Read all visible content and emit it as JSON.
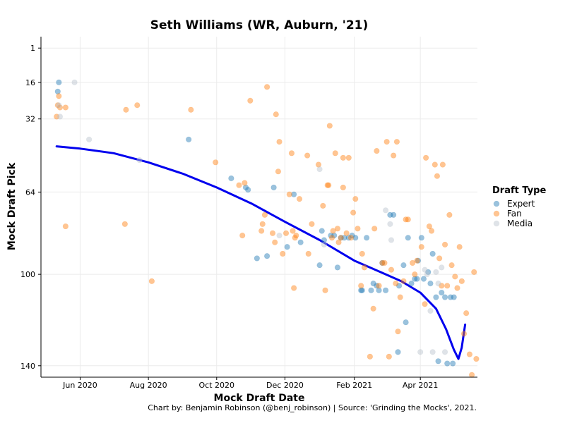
{
  "chart_data": {
    "type": "scatter",
    "title": "Seth Williams (WR, Auburn, '21)",
    "xlabel": "Mock Draft Date",
    "ylabel": "Mock Draft Pick",
    "caption": "Chart by: Benjamin Robinson (@benj_robinson) | Source: 'Grinding the Mocks', 2021.",
    "legend_title": "Draft Type",
    "legend_position": "right",
    "grid": true,
    "x_range": [
      "2020-04-27",
      "2021-05-22"
    ],
    "y_range": [
      145,
      -4
    ],
    "y_scale": "reversed",
    "x_ticks": [
      {
        "date": "2020-06-01",
        "label": "Jun 2020"
      },
      {
        "date": "2020-08-01",
        "label": "Aug 2020"
      },
      {
        "date": "2020-10-01",
        "label": "Oct 2020"
      },
      {
        "date": "2020-12-01",
        "label": "Dec 2020"
      },
      {
        "date": "2021-02-01",
        "label": "Feb 2021"
      },
      {
        "date": "2021-04-01",
        "label": "Apr 2021"
      }
    ],
    "y_ticks": [
      1,
      16,
      32,
      64,
      100,
      140
    ],
    "series": [
      {
        "name": "Expert",
        "color": "#1f77b4",
        "points": [
          [
            "2020-05-12",
            20
          ],
          [
            "2020-05-13",
            16
          ],
          [
            "2020-09-06",
            41
          ],
          [
            "2020-10-14",
            58
          ],
          [
            "2020-10-27",
            62
          ],
          [
            "2020-10-29",
            63
          ],
          [
            "2020-11-06",
            93
          ],
          [
            "2020-11-15",
            92
          ],
          [
            "2020-11-21",
            62
          ],
          [
            "2020-12-03",
            88
          ],
          [
            "2020-12-09",
            65
          ],
          [
            "2020-12-15",
            86
          ],
          [
            "2021-01-01",
            96
          ],
          [
            "2021-01-03",
            81
          ],
          [
            "2021-01-05",
            85
          ],
          [
            "2021-01-11",
            83
          ],
          [
            "2021-01-14",
            83
          ],
          [
            "2021-01-17",
            97
          ],
          [
            "2021-01-20",
            84
          ],
          [
            "2021-01-23",
            84
          ],
          [
            "2021-01-27",
            84
          ],
          [
            "2021-01-30",
            83
          ],
          [
            "2021-02-02",
            84
          ],
          [
            "2021-02-07",
            107
          ],
          [
            "2021-02-08",
            107
          ],
          [
            "2021-02-12",
            84
          ],
          [
            "2021-02-16",
            107
          ],
          [
            "2021-02-18",
            104
          ],
          [
            "2021-02-21",
            105
          ],
          [
            "2021-02-23",
            107
          ],
          [
            "2021-02-26",
            95
          ],
          [
            "2021-03-01",
            107
          ],
          [
            "2021-03-05",
            74
          ],
          [
            "2021-03-08",
            74
          ],
          [
            "2021-03-12",
            134
          ],
          [
            "2021-03-13",
            105
          ],
          [
            "2021-03-17",
            96
          ],
          [
            "2021-03-19",
            121
          ],
          [
            "2021-03-21",
            84
          ],
          [
            "2021-03-24",
            104
          ],
          [
            "2021-03-27",
            102
          ],
          [
            "2021-03-29",
            102
          ],
          [
            "2021-03-30",
            94
          ],
          [
            "2021-04-02",
            84
          ],
          [
            "2021-04-04",
            102
          ],
          [
            "2021-04-08",
            99
          ],
          [
            "2021-04-10",
            104
          ],
          [
            "2021-04-12",
            91
          ],
          [
            "2021-04-15",
            110
          ],
          [
            "2021-04-17",
            138
          ],
          [
            "2021-04-20",
            108
          ],
          [
            "2021-04-23",
            110
          ],
          [
            "2021-04-25",
            139
          ],
          [
            "2021-04-28",
            110
          ],
          [
            "2021-04-30",
            139
          ],
          [
            "2021-05-01",
            110
          ]
        ]
      },
      {
        "name": "Fan",
        "color": "#ff7f0e",
        "points": [
          [
            "2020-05-11",
            31
          ],
          [
            "2020-05-12",
            26
          ],
          [
            "2020-05-13",
            22
          ],
          [
            "2020-05-14",
            27
          ],
          [
            "2020-05-19",
            27
          ],
          [
            "2020-05-19",
            79
          ],
          [
            "2020-07-11",
            78
          ],
          [
            "2020-07-12",
            28
          ],
          [
            "2020-07-22",
            26
          ],
          [
            "2020-08-04",
            103
          ],
          [
            "2020-09-08",
            28
          ],
          [
            "2020-09-30",
            51
          ],
          [
            "2020-10-21",
            61
          ],
          [
            "2020-10-24",
            83
          ],
          [
            "2020-10-26",
            60
          ],
          [
            "2020-10-31",
            24
          ],
          [
            "2020-11-10",
            81
          ],
          [
            "2020-11-11",
            78
          ],
          [
            "2020-11-13",
            74
          ],
          [
            "2020-11-15",
            18
          ],
          [
            "2020-11-20",
            82
          ],
          [
            "2020-11-22",
            86
          ],
          [
            "2020-11-23",
            30
          ],
          [
            "2020-11-25",
            55
          ],
          [
            "2020-11-26",
            42
          ],
          [
            "2020-11-29",
            91
          ],
          [
            "2020-12-02",
            82
          ],
          [
            "2020-12-05",
            65
          ],
          [
            "2020-12-07",
            47
          ],
          [
            "2020-12-08",
            81
          ],
          [
            "2020-12-09",
            106
          ],
          [
            "2020-12-10",
            84
          ],
          [
            "2020-12-11",
            83
          ],
          [
            "2020-12-14",
            67
          ],
          [
            "2020-12-21",
            48
          ],
          [
            "2020-12-22",
            91
          ],
          [
            "2020-12-25",
            78
          ],
          [
            "2020-12-31",
            52
          ],
          [
            "2021-01-04",
            70
          ],
          [
            "2021-01-06",
            107
          ],
          [
            "2021-01-08",
            61
          ],
          [
            "2021-01-09",
            61
          ],
          [
            "2021-01-10",
            35
          ],
          [
            "2021-01-12",
            84
          ],
          [
            "2021-01-13",
            81
          ],
          [
            "2021-01-15",
            47
          ],
          [
            "2021-01-17",
            80
          ],
          [
            "2021-01-18",
            86
          ],
          [
            "2021-01-20",
            84
          ],
          [
            "2021-01-22",
            62
          ],
          [
            "2021-01-22",
            49
          ],
          [
            "2021-01-25",
            82
          ],
          [
            "2021-01-27",
            49
          ],
          [
            "2021-01-29",
            84
          ],
          [
            "2021-01-31",
            73
          ],
          [
            "2021-02-02",
            67
          ],
          [
            "2021-02-04",
            80
          ],
          [
            "2021-02-07",
            105
          ],
          [
            "2021-02-08",
            91
          ],
          [
            "2021-02-10",
            97
          ],
          [
            "2021-02-15",
            136
          ],
          [
            "2021-02-18",
            115
          ],
          [
            "2021-02-19",
            80
          ],
          [
            "2021-02-21",
            46
          ],
          [
            "2021-02-23",
            105
          ],
          [
            "2021-02-26",
            95
          ],
          [
            "2021-02-28",
            95
          ],
          [
            "2021-03-02",
            42
          ],
          [
            "2021-03-04",
            136
          ],
          [
            "2021-03-06",
            98
          ],
          [
            "2021-03-08",
            48
          ],
          [
            "2021-03-10",
            104
          ],
          [
            "2021-03-11",
            42
          ],
          [
            "2021-03-12",
            125
          ],
          [
            "2021-03-14",
            110
          ],
          [
            "2021-03-17",
            103
          ],
          [
            "2021-03-19",
            76
          ],
          [
            "2021-03-21",
            76
          ],
          [
            "2021-03-25",
            95
          ],
          [
            "2021-03-27",
            100
          ],
          [
            "2021-03-29",
            94
          ],
          [
            "2021-04-02",
            88
          ],
          [
            "2021-04-05",
            113
          ],
          [
            "2021-04-06",
            49
          ],
          [
            "2021-04-09",
            79
          ],
          [
            "2021-04-11",
            81
          ],
          [
            "2021-04-14",
            52
          ],
          [
            "2021-04-16",
            57
          ],
          [
            "2021-04-18",
            93
          ],
          [
            "2021-04-20",
            105
          ],
          [
            "2021-04-21",
            52
          ],
          [
            "2021-04-23",
            87
          ],
          [
            "2021-04-25",
            105
          ],
          [
            "2021-04-27",
            74
          ],
          [
            "2021-04-29",
            96
          ],
          [
            "2021-05-02",
            101
          ],
          [
            "2021-05-04",
            106
          ],
          [
            "2021-05-06",
            88
          ],
          [
            "2021-05-08",
            103
          ],
          [
            "2021-05-10",
            126
          ],
          [
            "2021-05-12",
            117
          ],
          [
            "2021-05-15",
            135
          ],
          [
            "2021-05-17",
            144
          ],
          [
            "2021-05-19",
            99
          ],
          [
            "2021-05-21",
            137
          ]
        ]
      },
      {
        "name": "Media",
        "color": "#b8c2cc",
        "points": [
          [
            "2020-05-13",
            26
          ],
          [
            "2020-05-14",
            31
          ],
          [
            "2020-05-27",
            16
          ],
          [
            "2020-06-09",
            41
          ],
          [
            "2020-07-24",
            50
          ],
          [
            "2020-11-26",
            83
          ],
          [
            "2021-01-01",
            54
          ],
          [
            "2021-01-05",
            87
          ],
          [
            "2021-03-01",
            72
          ],
          [
            "2021-03-05",
            78
          ],
          [
            "2021-03-06",
            85
          ],
          [
            "2021-04-01",
            134
          ],
          [
            "2021-04-05",
            98
          ],
          [
            "2021-04-07",
            100
          ],
          [
            "2021-04-10",
            116
          ],
          [
            "2021-04-12",
            134
          ],
          [
            "2021-04-15",
            99
          ],
          [
            "2021-04-17",
            104
          ],
          [
            "2021-04-20",
            97
          ],
          [
            "2021-04-23",
            134
          ]
        ]
      }
    ],
    "trend": {
      "name": "Trend",
      "color": "#0000ee",
      "points": [
        [
          "2020-05-11",
          44
        ],
        [
          "2020-06-01",
          45
        ],
        [
          "2020-07-01",
          47
        ],
        [
          "2020-08-01",
          51
        ],
        [
          "2020-09-01",
          56
        ],
        [
          "2020-10-01",
          62
        ],
        [
          "2020-11-01",
          69
        ],
        [
          "2020-12-01",
          77
        ],
        [
          "2021-01-01",
          85
        ],
        [
          "2021-02-01",
          94
        ],
        [
          "2021-03-01",
          100
        ],
        [
          "2021-03-15",
          103
        ],
        [
          "2021-04-01",
          108
        ],
        [
          "2021-04-15",
          115
        ],
        [
          "2021-04-24",
          124
        ],
        [
          "2021-05-01",
          133
        ],
        [
          "2021-05-05",
          137
        ],
        [
          "2021-05-08",
          132
        ],
        [
          "2021-05-11",
          122
        ]
      ]
    }
  }
}
